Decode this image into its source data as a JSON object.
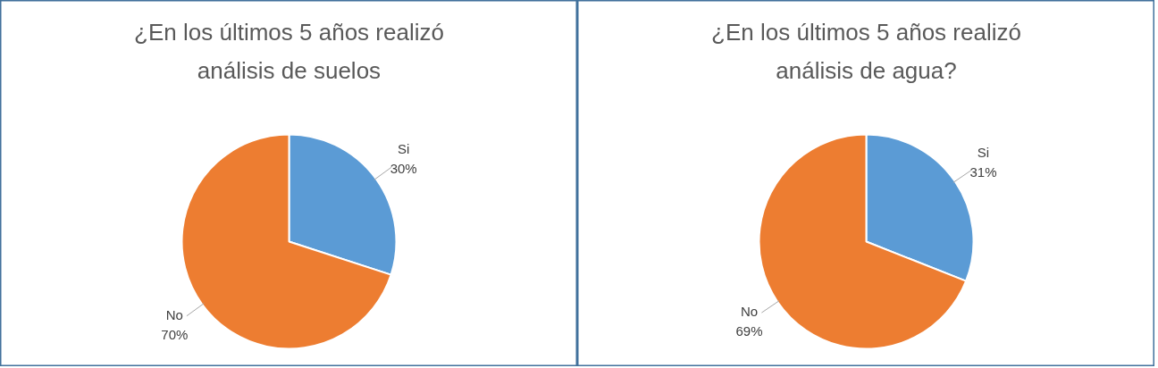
{
  "chart_data": [
    {
      "type": "pie",
      "title": "¿En los últimos 5 años realizó\nanálisis de suelos",
      "categories": [
        "Si",
        "No"
      ],
      "values": [
        30,
        70
      ],
      "value_labels": [
        "30%",
        "70%"
      ],
      "colors": [
        "#5b9bd5",
        "#ed7d31"
      ]
    },
    {
      "type": "pie",
      "title": "¿En los últimos 5 años realizó\nanálisis de agua?",
      "categories": [
        "Si",
        "No"
      ],
      "values": [
        31,
        69
      ],
      "value_labels": [
        "31%",
        "69%"
      ],
      "colors": [
        "#5b9bd5",
        "#ed7d31"
      ]
    }
  ]
}
